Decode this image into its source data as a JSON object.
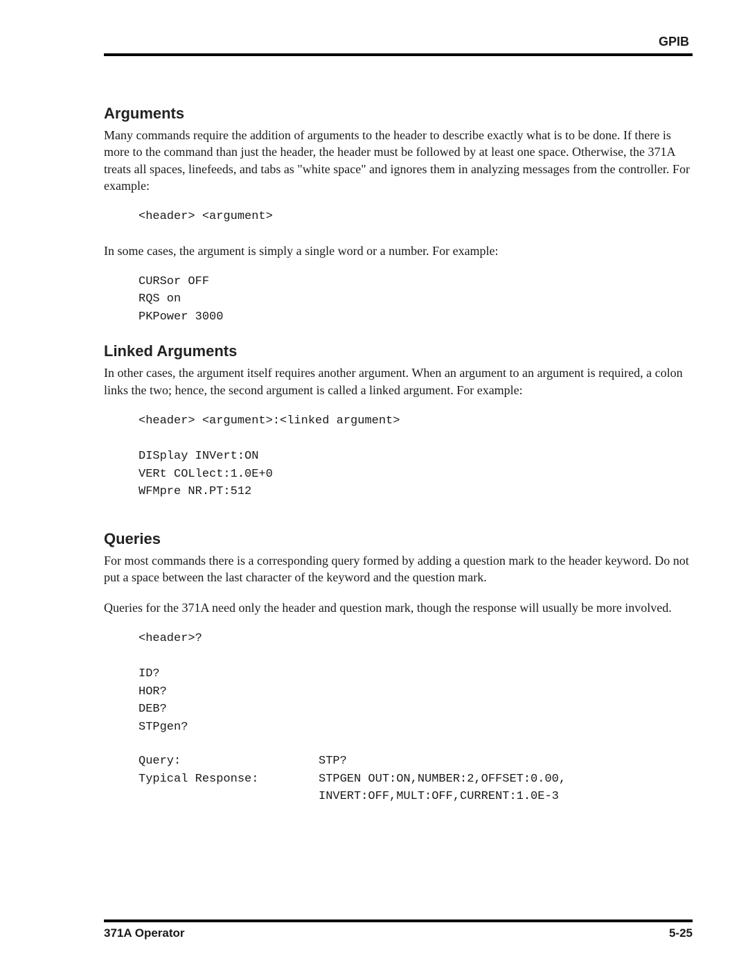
{
  "header": {
    "label": "GPIB"
  },
  "sections": {
    "arguments": {
      "heading": "Arguments",
      "p1": "Many commands require the addition of arguments to the header to describe exactly what is to be done. If there is more to the command than just the header, the header must be followed by at least one space. Otherwise, the 371A treats all spaces, linefeeds, and tabs as \"white space\" and ignores them in analyzing messages from the controller. For example:",
      "code1": "<header> <argument>",
      "p2": "In some cases, the argument is simply a single word or a number. For example:",
      "code2": "CURSor OFF\nRQS on\nPKPower 3000"
    },
    "linked": {
      "heading": "Linked Arguments",
      "p1": "In other cases, the argument itself requires another argument. When an argument to an argument is required, a colon links the two; hence, the second argument is called a linked argument. For example:",
      "code1": "<header> <argument>:<linked argument>\n\nDISplay INVert:ON\nVERt COLlect:1.0E+0\nWFMpre NR.PT:512"
    },
    "queries": {
      "heading": "Queries",
      "p1": "For most commands there is a corresponding query formed by adding a question mark to the header keyword. Do not put a space between the last character of the keyword and the question mark.",
      "p2": "Queries for the 371A need only the header and question mark, though the response will usually be more involved.",
      "code1": "<header>?\n\nID?\nHOR?\nDEB?\nSTPgen?",
      "query_label": "Query:",
      "query_value": "STP?",
      "response_label": "Typical Response:",
      "response_line1": "STPGEN OUT:ON,NUMBER:2,OFFSET:0.00,",
      "response_line2": "INVERT:OFF,MULT:OFF,CURRENT:1.0E-3"
    }
  },
  "footer": {
    "left": "371A Operator",
    "right": "5-25"
  }
}
